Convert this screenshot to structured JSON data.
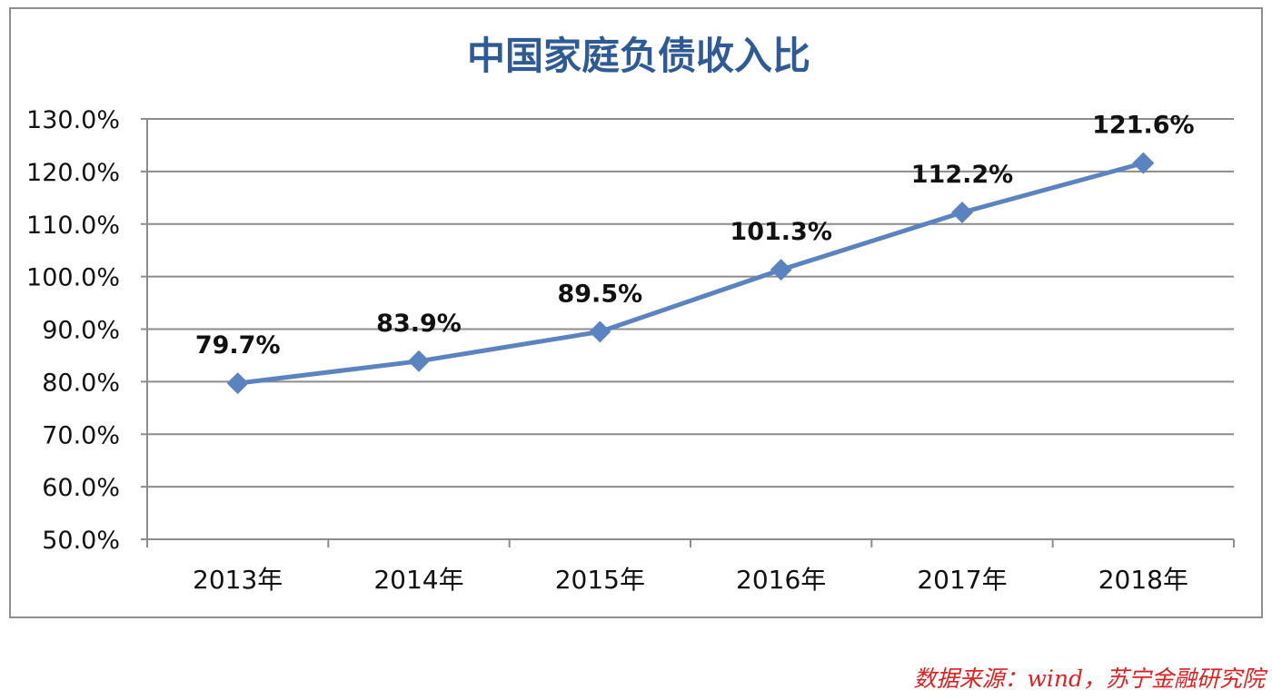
{
  "chart_data": {
    "type": "line",
    "title": "中国家庭负债收入比",
    "categories": [
      "2013年",
      "2014年",
      "2015年",
      "2016年",
      "2017年",
      "2018年"
    ],
    "series": [
      {
        "values": [
          79.7,
          83.9,
          89.5,
          101.3,
          112.2,
          121.6
        ],
        "data_labels": [
          "79.7%",
          "83.9%",
          "89.5%",
          "101.3%",
          "112.2%",
          "121.6%"
        ]
      }
    ],
    "ylim": [
      50,
      130
    ],
    "y_ticks": [
      50,
      60,
      70,
      80,
      90,
      100,
      110,
      120,
      130
    ],
    "y_tick_labels": [
      "50.0%",
      "60.0%",
      "70.0%",
      "80.0%",
      "90.0%",
      "100.0%",
      "110.0%",
      "120.0%",
      "130.0%"
    ],
    "grid": true,
    "marker": "diamond",
    "colors": {
      "line": "#5b83c0",
      "title": "#2e5a96",
      "grid": "#8c8c8c",
      "source": "#e02020"
    }
  },
  "source": "数据来源：wind，苏宁金融研究院"
}
